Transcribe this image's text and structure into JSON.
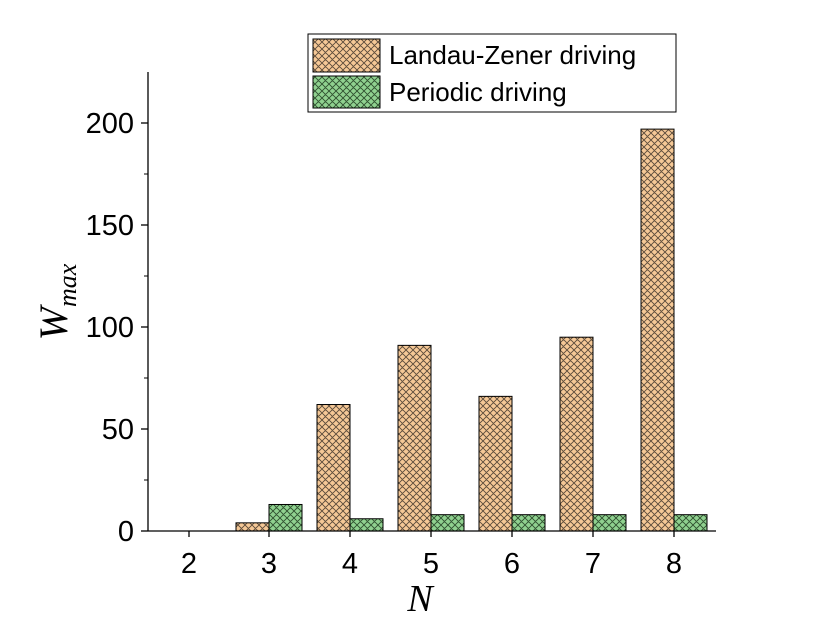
{
  "chart_data": {
    "type": "bar",
    "categories": [
      "2",
      "3",
      "4",
      "5",
      "6",
      "7",
      "8"
    ],
    "series": [
      {
        "name": "Landau-Zener driving",
        "values": [
          0,
          4,
          62,
          91,
          66,
          95,
          197
        ],
        "color": "#f5c896"
      },
      {
        "name": "Periodic driving",
        "values": [
          0,
          13,
          6,
          8,
          8,
          8,
          8
        ],
        "color": "#8fd18f"
      }
    ],
    "xlabel": "N",
    "ylabel": {
      "base": "W",
      "subscript": "max"
    },
    "ylim": [
      0,
      225
    ],
    "yticks": [
      "0",
      "50",
      "100",
      "150",
      "200"
    ],
    "ytick_values": [
      0,
      50,
      100,
      150,
      200
    ],
    "grid": false,
    "legend_position": "top-right",
    "pattern": "crosshatch"
  }
}
